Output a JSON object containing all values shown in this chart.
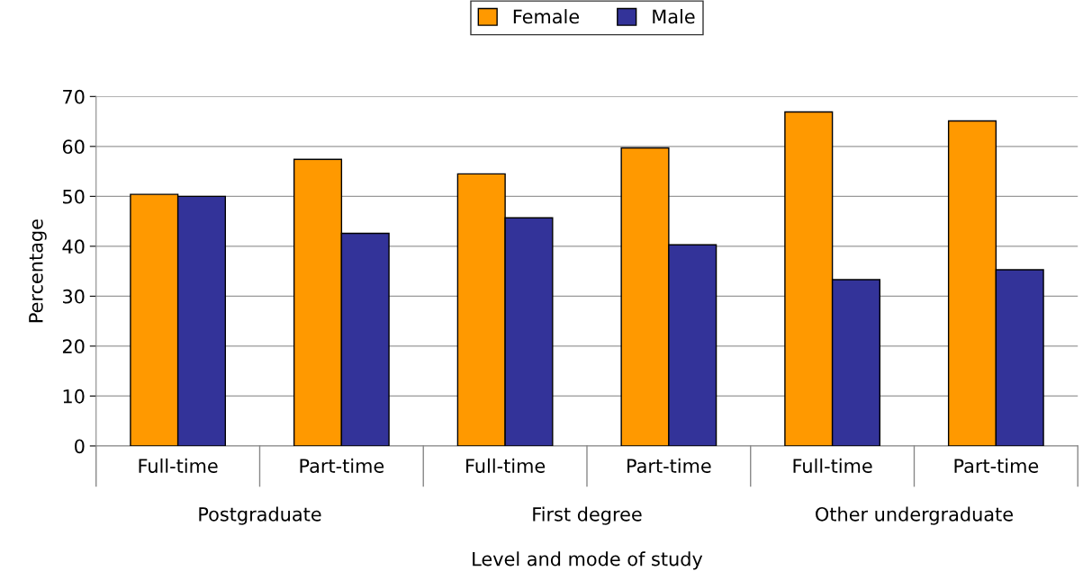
{
  "chart_data": {
    "type": "bar",
    "xlabel": "Level and mode of study",
    "ylabel": "Percentage",
    "categories": [
      "Full-time",
      "Part-time",
      "Full-time",
      "Part-time",
      "Full-time",
      "Part-time"
    ],
    "annotations": [
      "Postgraduate",
      "First degree",
      "Other undergraduate"
    ],
    "series": [
      {
        "name": "Female",
        "color": "#ff9900",
        "values": [
          50.4,
          57.4,
          54.5,
          59.7,
          66.9,
          65.1
        ]
      },
      {
        "name": "Male",
        "color": "#333399",
        "values": [
          50.0,
          42.6,
          45.7,
          40.3,
          33.3,
          35.3
        ]
      }
    ],
    "ylim": [
      0,
      70
    ],
    "yticks": [
      0,
      10,
      20,
      30,
      40,
      50,
      60,
      70
    ],
    "grid": "y",
    "legend": "top"
  }
}
